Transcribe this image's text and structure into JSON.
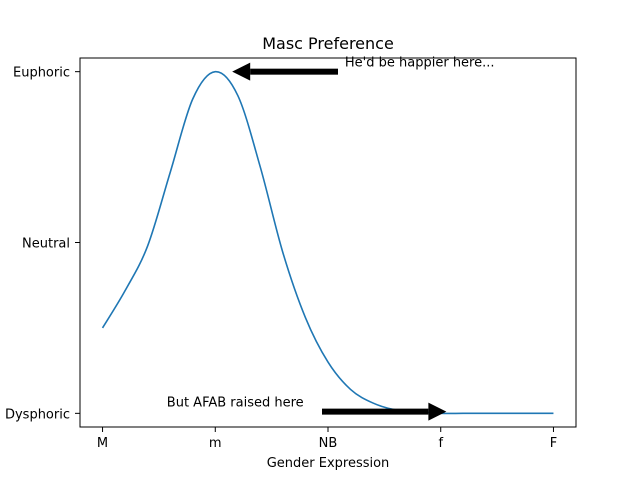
{
  "chart_data": {
    "type": "line",
    "title": "Masc Preference",
    "xlabel": "Gender Expression",
    "ylabel": "",
    "x_ticks": [
      {
        "value": 0,
        "label": "M"
      },
      {
        "value": 1,
        "label": "m"
      },
      {
        "value": 2,
        "label": "NB"
      },
      {
        "value": 3,
        "label": "f"
      },
      {
        "value": 4,
        "label": "F"
      }
    ],
    "y_ticks": [
      {
        "value": -1,
        "label": "Dysphoric"
      },
      {
        "value": 0,
        "label": "Neutral"
      },
      {
        "value": 1,
        "label": "Euphoric"
      }
    ],
    "xlim": [
      -0.2,
      4.2
    ],
    "ylim": [
      -1.08,
      1.08
    ],
    "series": [
      {
        "color": "#1f77b4",
        "x": [
          0,
          0.2,
          0.4,
          0.6,
          0.8,
          1.0,
          1.2,
          1.4,
          1.6,
          1.8,
          2.0,
          2.2,
          2.4,
          2.6,
          2.8,
          3.0,
          3.2,
          3.4,
          3.6,
          3.8,
          4.0
        ],
        "y": [
          -0.5,
          -0.282,
          -0.02,
          0.41,
          0.84,
          1.0,
          0.86,
          0.44,
          -0.06,
          -0.44,
          -0.7,
          -0.86,
          -0.94,
          -0.98,
          -0.99,
          -1.0,
          -1.0,
          -1.0,
          -1.0,
          -1.0,
          -1.0
        ]
      }
    ],
    "annotations": [
      {
        "text": "He'd be happier here...",
        "text_x": 2.15,
        "text_y": 1.03,
        "point_x": 1.15,
        "point_y": 1.0
      },
      {
        "text": "But AFAB raised here",
        "text_x": 0.57,
        "text_y": -0.96,
        "point_x": 3.05,
        "point_y": -0.99,
        "reversed": true
      }
    ],
    "grid": false,
    "legend": "none"
  }
}
